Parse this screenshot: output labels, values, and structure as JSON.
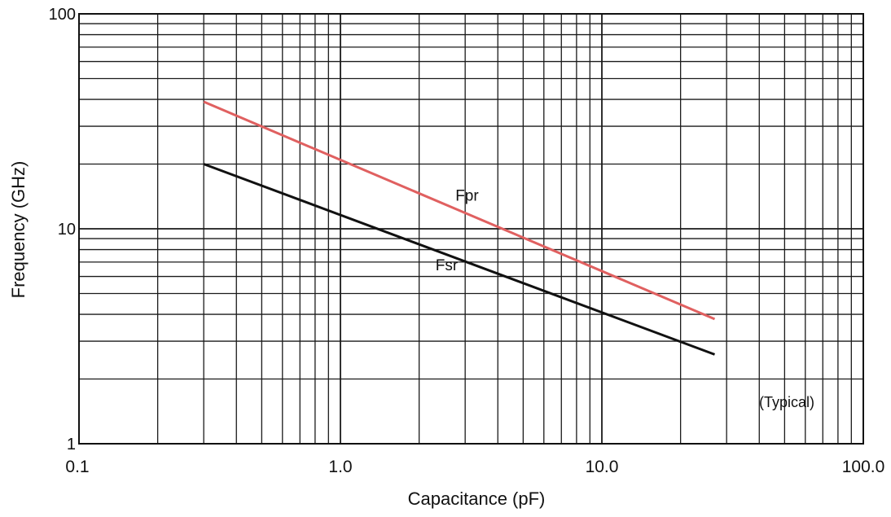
{
  "chart_data": {
    "type": "line",
    "xlabel": "Capacitance (pF)",
    "ylabel": "Frequency (GHz)",
    "x_scale": "log",
    "y_scale": "log",
    "xlim": [
      0.1,
      100.0
    ],
    "ylim": [
      1,
      100
    ],
    "x_ticks": [
      "0.1",
      "1.0",
      "10.0",
      "100.0"
    ],
    "y_ticks": [
      "1",
      "10",
      "100"
    ],
    "grid": true,
    "annotation": "(Typical)",
    "series": [
      {
        "name": "Fpr",
        "color": "#e06060",
        "x": [
          0.3,
          27
        ],
        "y": [
          39,
          3.8
        ]
      },
      {
        "name": "Fsr",
        "color": "#111111",
        "x": [
          0.3,
          27
        ],
        "y": [
          20,
          2.6
        ]
      }
    ]
  }
}
